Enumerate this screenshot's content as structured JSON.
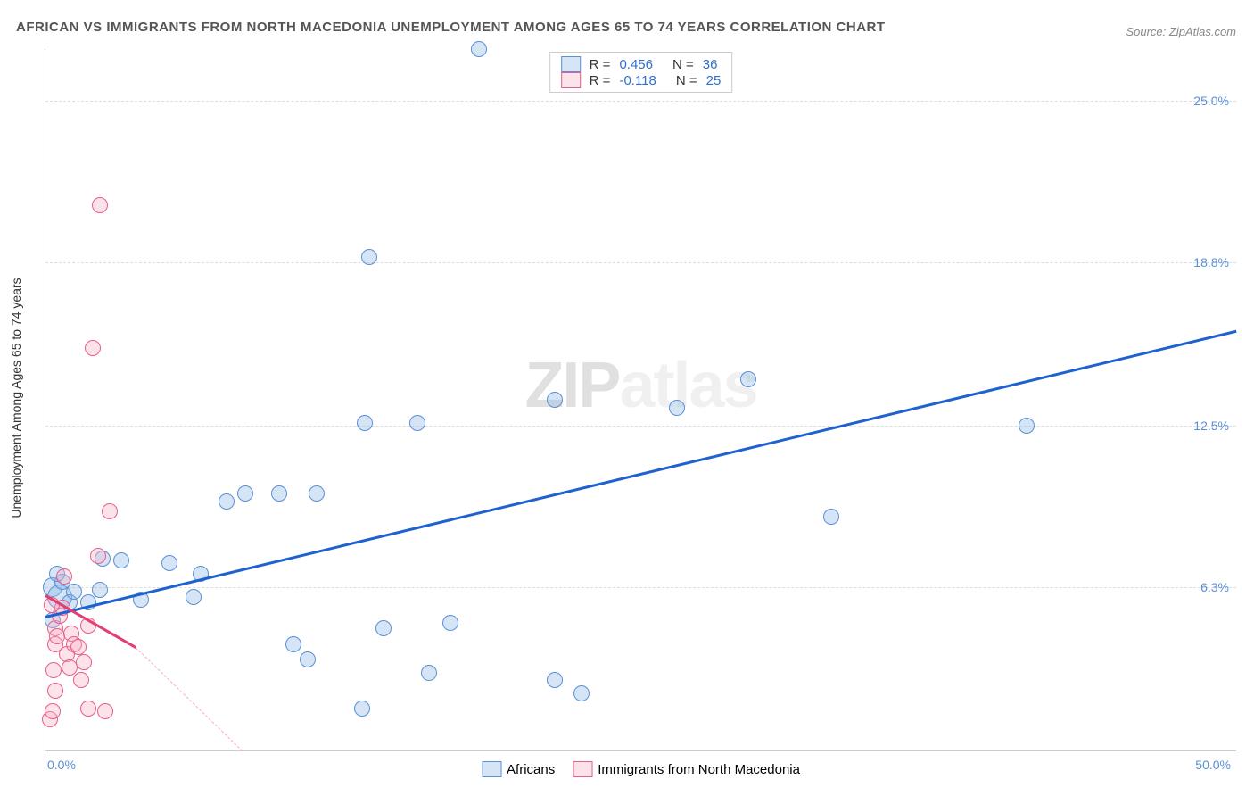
{
  "title": "AFRICAN VS IMMIGRANTS FROM NORTH MACEDONIA UNEMPLOYMENT AMONG AGES 65 TO 74 YEARS CORRELATION CHART",
  "title_fontsize": 15,
  "source": "Source: ZipAtlas.com",
  "source_fontsize": 13,
  "ylabel": "Unemployment Among Ages 65 to 74 years",
  "ylabel_fontsize": 14,
  "watermark": "ZIPatlas",
  "chart": {
    "type": "scatter",
    "background_color": "#ffffff",
    "grid_color": "#dddddd",
    "axis_color": "#cccccc",
    "xlim": [
      0,
      50
    ],
    "ylim": [
      0,
      27
    ],
    "ytick_labels": [
      {
        "v": 6.3,
        "label": "6.3%"
      },
      {
        "v": 12.5,
        "label": "12.5%"
      },
      {
        "v": 18.8,
        "label": "18.8%"
      },
      {
        "v": 25.0,
        "label": "25.0%"
      }
    ],
    "xtick_labels": [
      {
        "v": 0,
        "label": "0.0%",
        "align": "left"
      },
      {
        "v": 50,
        "label": "50.0%",
        "align": "right"
      }
    ],
    "tick_fontsize": 14,
    "tick_color": "#5b8fd6",
    "marker_radius": 10,
    "series": [
      {
        "name": "Africans",
        "color_fill": "rgba(135,180,230,0.35)",
        "color_stroke": "#5b8fd6",
        "R": "0.456",
        "N": "36",
        "trendline": {
          "x1": 0,
          "y1": 5.2,
          "x2": 50,
          "y2": 16.2,
          "color": "#1e62d0",
          "dashed": false
        },
        "points": [
          {
            "x": 0.3,
            "y": 6.3,
            "r": 11
          },
          {
            "x": 0.6,
            "y": 5.9,
            "r": 14
          },
          {
            "x": 1.0,
            "y": 5.7,
            "r": 9
          },
          {
            "x": 0.7,
            "y": 6.5,
            "r": 9
          },
          {
            "x": 1.2,
            "y": 6.1,
            "r": 9
          },
          {
            "x": 1.8,
            "y": 5.7,
            "r": 9
          },
          {
            "x": 2.4,
            "y": 7.4,
            "r": 9
          },
          {
            "x": 3.2,
            "y": 7.3,
            "r": 9
          },
          {
            "x": 2.3,
            "y": 6.2,
            "r": 9
          },
          {
            "x": 4.0,
            "y": 5.8,
            "r": 9
          },
          {
            "x": 5.2,
            "y": 7.2,
            "r": 9
          },
          {
            "x": 6.5,
            "y": 6.8,
            "r": 9
          },
          {
            "x": 7.6,
            "y": 9.6,
            "r": 9
          },
          {
            "x": 8.4,
            "y": 9.9,
            "r": 9
          },
          {
            "x": 9.8,
            "y": 9.9,
            "r": 9
          },
          {
            "x": 10.4,
            "y": 4.1,
            "r": 9
          },
          {
            "x": 11.0,
            "y": 3.5,
            "r": 9
          },
          {
            "x": 11.4,
            "y": 9.9,
            "r": 9
          },
          {
            "x": 13.3,
            "y": 1.6,
            "r": 9
          },
          {
            "x": 13.4,
            "y": 12.6,
            "r": 9
          },
          {
            "x": 13.6,
            "y": 19.0,
            "r": 9
          },
          {
            "x": 14.2,
            "y": 4.7,
            "r": 9
          },
          {
            "x": 15.6,
            "y": 12.6,
            "r": 9
          },
          {
            "x": 16.1,
            "y": 3.0,
            "r": 9
          },
          {
            "x": 17.0,
            "y": 4.9,
            "r": 9
          },
          {
            "x": 18.2,
            "y": 27.0,
            "r": 9
          },
          {
            "x": 21.4,
            "y": 2.7,
            "r": 9
          },
          {
            "x": 21.4,
            "y": 13.5,
            "r": 9
          },
          {
            "x": 22.5,
            "y": 2.2,
            "r": 9
          },
          {
            "x": 26.5,
            "y": 13.2,
            "r": 9
          },
          {
            "x": 29.5,
            "y": 14.3,
            "r": 9
          },
          {
            "x": 33.0,
            "y": 9.0,
            "r": 9
          },
          {
            "x": 41.2,
            "y": 12.5,
            "r": 9
          },
          {
            "x": 0.3,
            "y": 5.0,
            "r": 9
          },
          {
            "x": 6.2,
            "y": 5.9,
            "r": 9
          },
          {
            "x": 0.5,
            "y": 6.8,
            "r": 9
          }
        ]
      },
      {
        "name": "Immigrants from North Macedonia",
        "color_fill": "rgba(247,175,195,0.35)",
        "color_stroke": "#e85d8a",
        "R": "-0.118",
        "N": "25",
        "trendline_solid": {
          "x1": 0,
          "y1": 6.0,
          "x2": 3.8,
          "y2": 4.0,
          "color": "#e33d72",
          "dashed": false
        },
        "trendline_dash": {
          "x1": 3.8,
          "y1": 4.0,
          "x2": 8.3,
          "y2": 0,
          "color": "#f3aec2",
          "dashed": true
        },
        "points": [
          {
            "x": 0.2,
            "y": 1.2,
            "r": 9
          },
          {
            "x": 0.3,
            "y": 1.5,
            "r": 9
          },
          {
            "x": 0.4,
            "y": 2.3,
            "r": 9
          },
          {
            "x": 0.35,
            "y": 3.1,
            "r": 9
          },
          {
            "x": 0.4,
            "y": 4.1,
            "r": 9
          },
          {
            "x": 0.42,
            "y": 4.7,
            "r": 9
          },
          {
            "x": 0.5,
            "y": 4.4,
            "r": 9
          },
          {
            "x": 0.6,
            "y": 5.2,
            "r": 9
          },
          {
            "x": 0.7,
            "y": 5.5,
            "r": 9
          },
          {
            "x": 0.8,
            "y": 6.7,
            "r": 9
          },
          {
            "x": 0.9,
            "y": 3.7,
            "r": 9
          },
          {
            "x": 1.0,
            "y": 3.2,
            "r": 9
          },
          {
            "x": 1.1,
            "y": 4.5,
            "r": 9
          },
          {
            "x": 1.2,
            "y": 4.1,
            "r": 9
          },
          {
            "x": 1.4,
            "y": 4.0,
            "r": 9
          },
          {
            "x": 1.5,
            "y": 2.7,
            "r": 9
          },
          {
            "x": 1.6,
            "y": 3.4,
            "r": 9
          },
          {
            "x": 1.8,
            "y": 4.8,
            "r": 9
          },
          {
            "x": 1.8,
            "y": 1.6,
            "r": 9
          },
          {
            "x": 2.2,
            "y": 7.5,
            "r": 9
          },
          {
            "x": 2.5,
            "y": 1.5,
            "r": 9
          },
          {
            "x": 2.0,
            "y": 15.5,
            "r": 9
          },
          {
            "x": 2.3,
            "y": 21.0,
            "r": 9
          },
          {
            "x": 2.7,
            "y": 9.2,
            "r": 9
          },
          {
            "x": 0.25,
            "y": 5.6,
            "r": 9
          }
        ]
      }
    ],
    "series_legend": [
      {
        "swatch": "blue",
        "label": "Africans"
      },
      {
        "swatch": "pink",
        "label": "Immigrants from North Macedonia"
      }
    ]
  }
}
